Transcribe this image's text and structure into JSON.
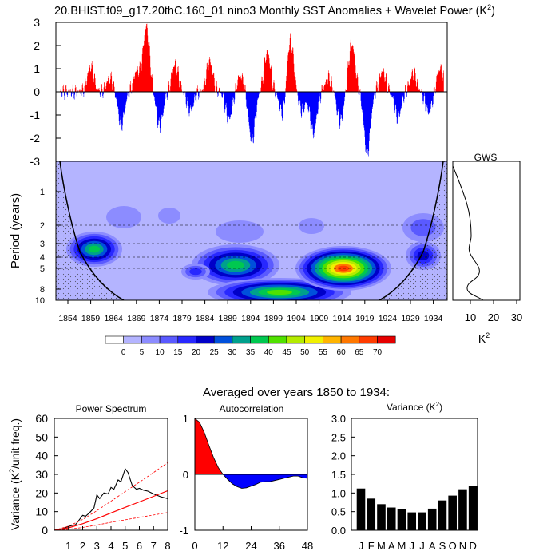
{
  "title": {
    "main": "20.BHIST.f09_g17.20thC.160_01 nino3 Monthly SST Anomalies + Wavelet Power (K",
    "sup": "2",
    "close": ")"
  },
  "colors": {
    "positive": "#ff0000",
    "negative": "#0000ff",
    "wavelet_low": "#b4b4ff",
    "black": "#000000"
  },
  "timeseries": {
    "ylim": [
      -3,
      3
    ],
    "yticks": [
      "3",
      "2",
      "1",
      "0",
      "-1",
      "-2",
      "-3"
    ]
  },
  "wavelet": {
    "ylabel": "Period (years)",
    "period_ticks": [
      "1",
      "2",
      "3",
      "4",
      "5",
      "8",
      "10"
    ],
    "year_ticks": [
      "1854",
      "1859",
      "1864",
      "1869",
      "1874",
      "1879",
      "1884",
      "1889",
      "1894",
      "1899",
      "1904",
      "1909",
      "1914",
      "1919",
      "1924",
      "1929",
      "1934"
    ],
    "legend_labels": [
      "0",
      "5",
      "10",
      "15",
      "20",
      "25",
      "30",
      "35",
      "40",
      "45",
      "50",
      "55",
      "60",
      "65",
      "70"
    ],
    "legend_colors": [
      "#ffffff",
      "#b4b4ff",
      "#8c8cff",
      "#5a5aff",
      "#2828ff",
      "#0000c8",
      "#0050dc",
      "#00a08c",
      "#00c850",
      "#50e100",
      "#b4eb00",
      "#f0f000",
      "#ffb400",
      "#ff7800",
      "#ff3c00",
      "#e60000"
    ]
  },
  "gws": {
    "title": "GWS",
    "xticks": [
      "10",
      "20",
      "30"
    ],
    "xlabel": "K",
    "xlabel_sup": "2"
  },
  "averaged_title": "Averaged over years 1850 to 1934:",
  "chart_data": [
    {
      "type": "line",
      "name": "Power Spectrum",
      "title": "Power Spectrum",
      "ylabel": "Variance (K",
      "ylabel_sup": "2",
      "ylabel_end": "/unit freq.)",
      "xticks": [
        "1",
        "2",
        "3",
        "4",
        "5",
        "6",
        "7",
        "8"
      ],
      "yticks": [
        "0",
        "10",
        "20",
        "30",
        "40",
        "50",
        "60"
      ],
      "xlim": [
        0,
        8
      ],
      "ylim": [
        0,
        60
      ],
      "series": [
        {
          "name": "spectrum",
          "x": [
            0,
            0.5,
            0.8,
            1,
            1.2,
            1.5,
            1.7,
            2,
            2.2,
            2.5,
            2.8,
            3,
            3.2,
            3.5,
            3.8,
            4,
            4.2,
            4.5,
            4.7,
            5,
            5.2,
            5.5,
            5.8,
            6,
            6.3,
            6.6,
            7,
            7.5,
            8
          ],
          "y": [
            0,
            0.5,
            1.5,
            2,
            2.5,
            3,
            5,
            8,
            7.5,
            9.5,
            12,
            19,
            17,
            20,
            19.5,
            23,
            22,
            27,
            26,
            33,
            31,
            24,
            22,
            22.5,
            21.5,
            21,
            19.5,
            18,
            17
          ]
        },
        {
          "name": "red_noise",
          "x": [
            0,
            1,
            2,
            3,
            4,
            5,
            6,
            7,
            8
          ],
          "y": [
            0,
            1.3,
            3.5,
            6.2,
            9.3,
            12.3,
            15.2,
            18.2,
            21.2
          ]
        },
        {
          "name": "conf_upper",
          "x": [
            0,
            1,
            2,
            3,
            4,
            5,
            6,
            7,
            8
          ],
          "y": [
            0,
            2.2,
            5.8,
            10.5,
            15.6,
            20.8,
            25.8,
            31,
            36.3
          ]
        },
        {
          "name": "conf_lower",
          "x": [
            0,
            1,
            2,
            3,
            4,
            5,
            6,
            7,
            8
          ],
          "y": [
            0,
            0.5,
            1.5,
            2.8,
            4.3,
            5.6,
            6.9,
            8.2,
            9.5
          ]
        }
      ]
    },
    {
      "type": "area",
      "name": "Autocorrelation",
      "title": "Autocorrelation",
      "xticks": [
        "0",
        "12",
        "24",
        "36",
        "48"
      ],
      "yticks": [
        "1",
        "0",
        "-1"
      ],
      "xlim": [
        0,
        48
      ],
      "ylim": [
        -1,
        1
      ],
      "x": [
        0,
        2,
        4,
        6,
        8,
        10,
        12,
        14,
        16,
        18,
        20,
        22,
        24,
        26,
        28,
        30,
        32,
        34,
        36,
        38,
        40,
        42,
        44,
        46,
        48
      ],
      "y": [
        1,
        0.93,
        0.75,
        0.52,
        0.3,
        0.12,
        0.0,
        -0.09,
        -0.17,
        -0.22,
        -0.25,
        -0.24,
        -0.21,
        -0.18,
        -0.14,
        -0.13,
        -0.13,
        -0.11,
        -0.09,
        -0.07,
        -0.05,
        -0.03,
        -0.03,
        -0.06,
        -0.07
      ]
    },
    {
      "type": "bar",
      "name": "Variance",
      "title": "Variance (K",
      "title_sup": "2",
      "title_end": ")",
      "categories": [
        "J",
        "F",
        "M",
        "A",
        "M",
        "J",
        "J",
        "A",
        "S",
        "O",
        "N",
        "D"
      ],
      "values": [
        1.12,
        0.85,
        0.7,
        0.61,
        0.56,
        0.48,
        0.48,
        0.58,
        0.8,
        0.93,
        1.1,
        1.18
      ],
      "yticks": [
        "3.0",
        "2.5",
        "2.0",
        "1.5",
        "1.0",
        "0.5",
        "0.0"
      ],
      "ylim": [
        0,
        3
      ]
    }
  ]
}
